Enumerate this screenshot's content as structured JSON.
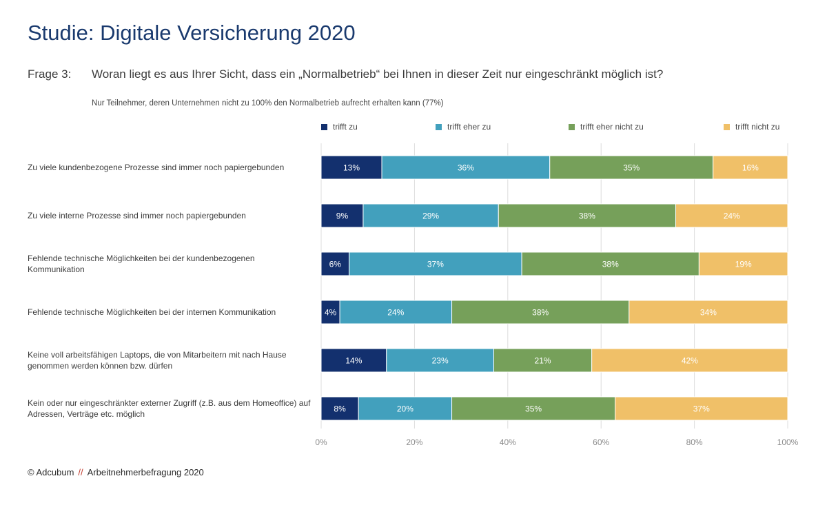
{
  "header": {
    "title": "Studie: Digitale Versicherung 2020",
    "question_label": "Frage 3:",
    "question_text": "Woran liegt es aus Ihrer Sicht, dass ein „Normalbetrieb“ bei Ihnen in dieser Zeit nur eingeschränkt möglich ist?",
    "subtitle": "Nur Teilnehmer, deren Unternehmen nicht zu 100% den Normalbetrieb aufrecht erhalten kann (77%)"
  },
  "footer": {
    "copyright": "© Adcubum",
    "separator": "//",
    "source": "Arbeitnehmerbefragung 2020"
  },
  "chart_data": {
    "type": "bar",
    "orientation": "horizontal",
    "stacked": true,
    "categories": [
      "Zu viele kundenbezogene Prozesse sind immer noch papiergebunden",
      "Zu viele interne Prozesse sind immer noch papiergebunden",
      "Fehlende technische Möglichkeiten bei der kundenbezogenen Kommunikation",
      "Fehlende technische Möglichkeiten bei der internen Kommunikation",
      "Keine voll arbeitsfähigen Laptops, die von Mitarbeitern mit nach Hause genommen werden können bzw. dürfen",
      "Kein oder nur eingeschränkter externer Zugriff (z.B. aus dem Homeoffice) auf Adressen, Verträge etc. möglich"
    ],
    "series": [
      {
        "name": "trifft zu",
        "color": "#13306e",
        "values": [
          13,
          9,
          6,
          4,
          14,
          8
        ]
      },
      {
        "name": "trifft eher zu",
        "color": "#42a0bd",
        "values": [
          36,
          29,
          37,
          24,
          23,
          20
        ]
      },
      {
        "name": "trifft eher nicht zu",
        "color": "#76a05a",
        "values": [
          35,
          38,
          38,
          38,
          21,
          35
        ]
      },
      {
        "name": "trifft nicht zu",
        "color": "#f0c068",
        "values": [
          16,
          24,
          19,
          34,
          42,
          37
        ]
      }
    ],
    "xlim": [
      0,
      100
    ],
    "xticks": [
      "0%",
      "20%",
      "40%",
      "60%",
      "80%",
      "100%"
    ],
    "value_suffix": "%",
    "grid": true,
    "legend_position": "top"
  }
}
